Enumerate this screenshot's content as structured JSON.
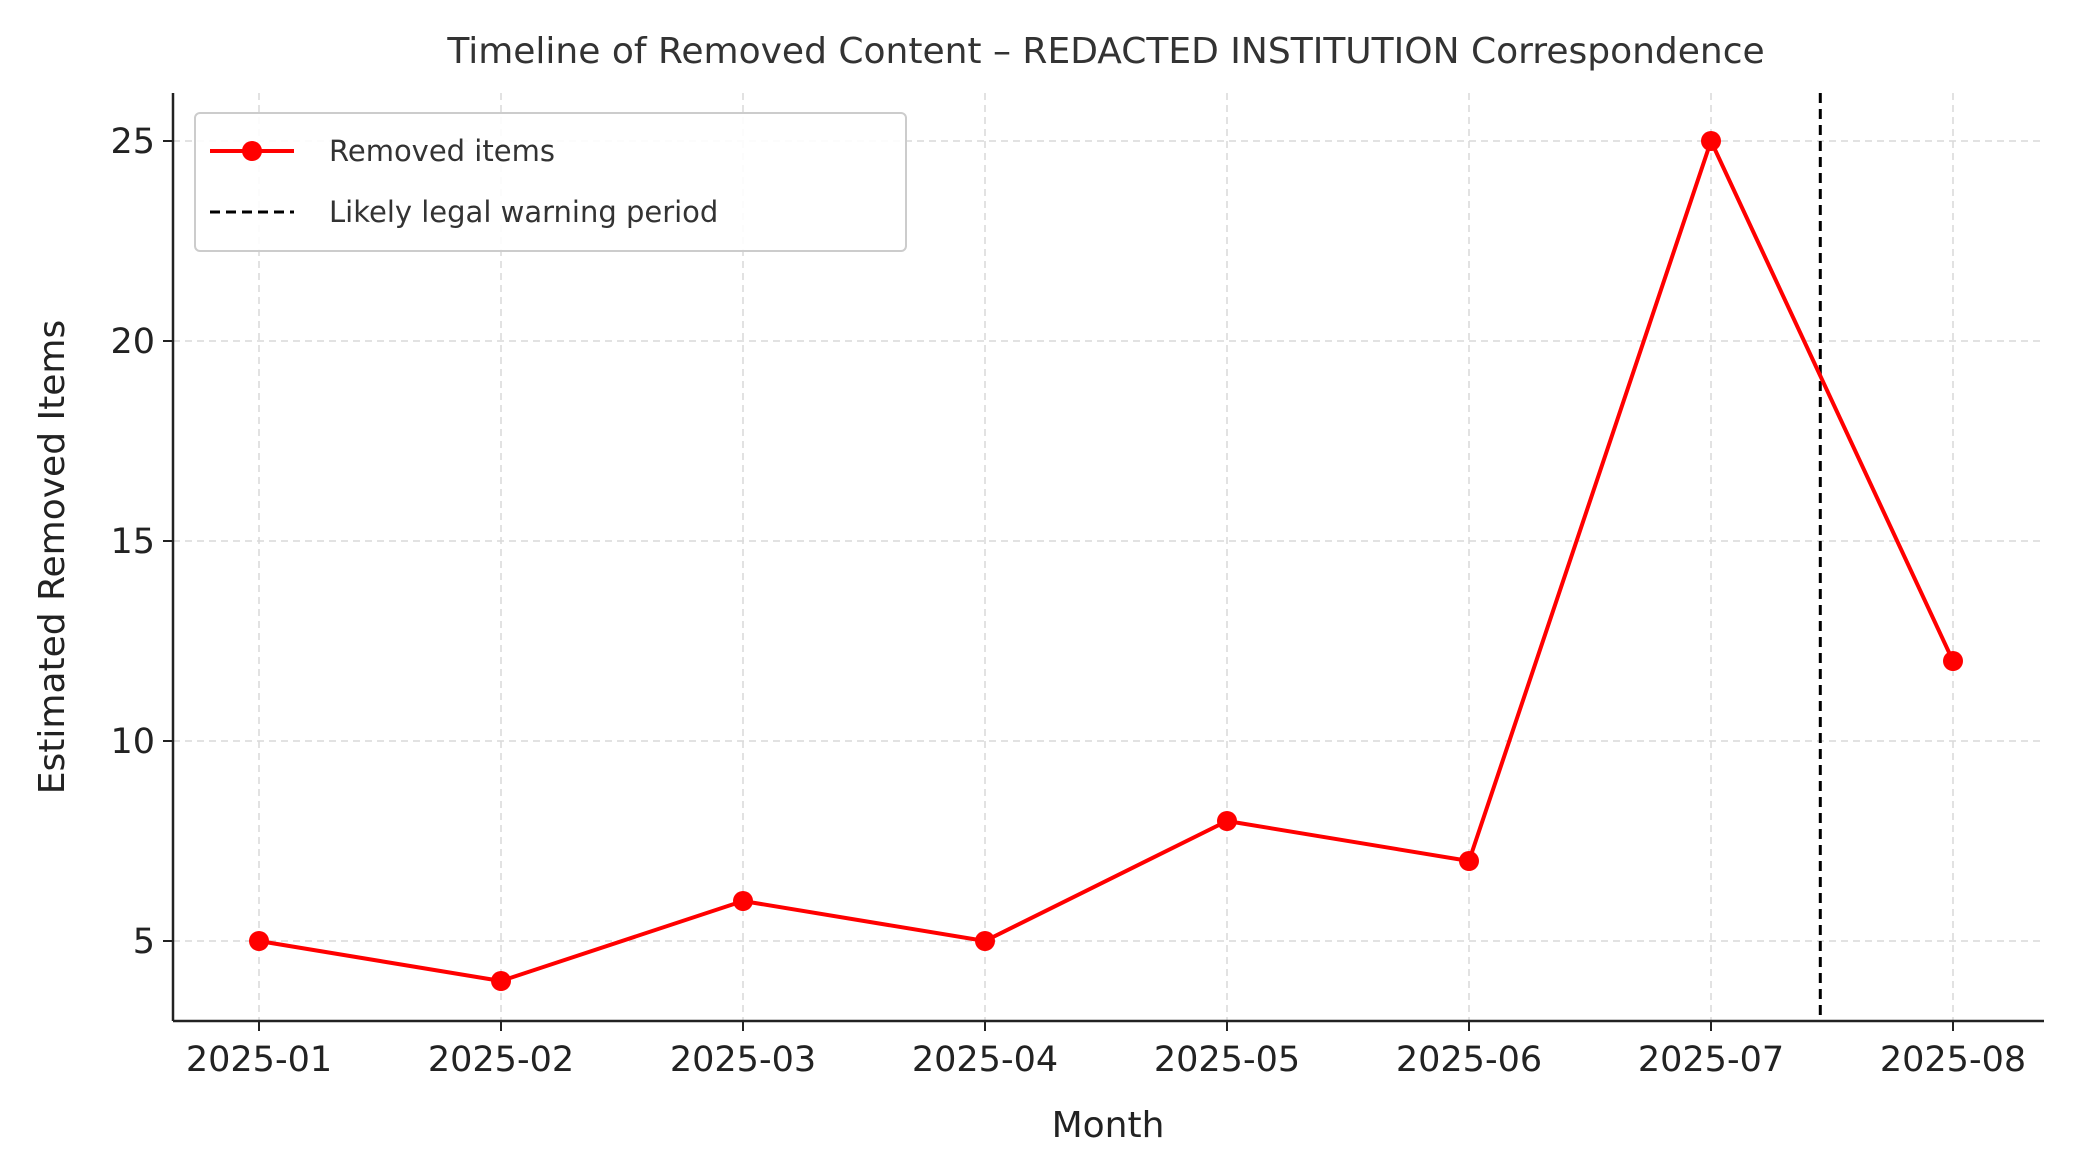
{
  "chart_data": {
    "type": "line",
    "title": "Timeline of Removed Content – REDACTED INSTITUTION Correspondence",
    "xlabel": "Month",
    "ylabel": "Estimated Removed Items",
    "categories": [
      "2025-01",
      "2025-02",
      "2025-03",
      "2025-04",
      "2025-05",
      "2025-06",
      "2025-07",
      "2025-08"
    ],
    "y_ticks": [
      "5",
      "10",
      "15",
      "20",
      "25"
    ],
    "series": [
      {
        "name": "Removed items",
        "values": [
          5,
          4,
          6,
          5,
          8,
          7,
          25,
          12
        ],
        "color": "#ff0000"
      }
    ],
    "annotations": [
      {
        "name": "Likely legal warning period",
        "type": "vertical-dashed-line",
        "x": "2025-07-15",
        "color": "#000000"
      }
    ],
    "ylim": [
      3,
      26.2
    ],
    "grid": true,
    "legend_position": "top-left"
  }
}
